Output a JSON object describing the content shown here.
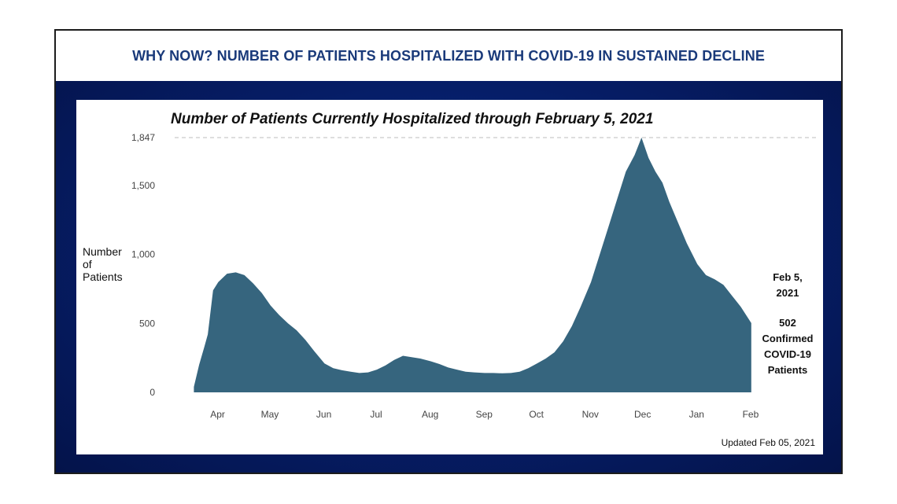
{
  "header": {
    "title": "WHY NOW? NUMBER OF PATIENTS HOSPITALIZED WITH COVID-19 IN SUSTAINED DECLINE"
  },
  "chart_data": {
    "type": "area",
    "title": "Number of Patients Currently Hospitalized through February 5, 2021",
    "ylabel_lines": [
      "Number",
      "of",
      "Patients"
    ],
    "ylim": [
      0,
      1847
    ],
    "y_ticks": [
      0,
      500,
      1000,
      1500,
      1847
    ],
    "y_tick_labels": [
      "0",
      "500",
      "1,000",
      "1,500",
      "1,847"
    ],
    "x_ticks": [
      {
        "label": "Apr",
        "x": "2020-04-01"
      },
      {
        "label": "May",
        "x": "2020-05-01"
      },
      {
        "label": "Jun",
        "x": "2020-06-01"
      },
      {
        "label": "Jul",
        "x": "2020-07-01"
      },
      {
        "label": "Aug",
        "x": "2020-08-01"
      },
      {
        "label": "Sep",
        "x": "2020-09-01"
      },
      {
        "label": "Oct",
        "x": "2020-10-01"
      },
      {
        "label": "Nov",
        "x": "2020-11-01"
      },
      {
        "label": "Dec",
        "x": "2020-12-01"
      },
      {
        "label": "Jan",
        "x": "2021-01-01"
      },
      {
        "label": "Feb",
        "x": "2021-02-01"
      }
    ],
    "reference_line": {
      "y": 1847,
      "style": "dashed"
    },
    "series": [
      {
        "color": "#36657e",
        "points": [
          [
            "2020-03-22",
            40
          ],
          [
            "2020-03-25",
            200
          ],
          [
            "2020-03-28",
            330
          ],
          [
            "2020-03-30",
            420
          ],
          [
            "2020-04-02",
            740
          ],
          [
            "2020-04-05",
            800
          ],
          [
            "2020-04-10",
            860
          ],
          [
            "2020-04-15",
            870
          ],
          [
            "2020-04-20",
            850
          ],
          [
            "2020-04-25",
            790
          ],
          [
            "2020-04-30",
            720
          ],
          [
            "2020-05-05",
            630
          ],
          [
            "2020-05-10",
            560
          ],
          [
            "2020-05-15",
            500
          ],
          [
            "2020-05-20",
            450
          ],
          [
            "2020-05-25",
            380
          ],
          [
            "2020-05-30",
            300
          ],
          [
            "2020-06-05",
            210
          ],
          [
            "2020-06-10",
            175
          ],
          [
            "2020-06-15",
            160
          ],
          [
            "2020-06-20",
            150
          ],
          [
            "2020-06-25",
            140
          ],
          [
            "2020-06-30",
            145
          ],
          [
            "2020-07-05",
            165
          ],
          [
            "2020-07-10",
            195
          ],
          [
            "2020-07-15",
            235
          ],
          [
            "2020-07-20",
            265
          ],
          [
            "2020-07-25",
            255
          ],
          [
            "2020-07-30",
            245
          ],
          [
            "2020-08-05",
            225
          ],
          [
            "2020-08-10",
            205
          ],
          [
            "2020-08-15",
            180
          ],
          [
            "2020-08-20",
            165
          ],
          [
            "2020-08-25",
            150
          ],
          [
            "2020-08-30",
            145
          ],
          [
            "2020-09-05",
            140
          ],
          [
            "2020-09-10",
            140
          ],
          [
            "2020-09-15",
            138
          ],
          [
            "2020-09-20",
            140
          ],
          [
            "2020-09-25",
            150
          ],
          [
            "2020-09-30",
            175
          ],
          [
            "2020-10-05",
            210
          ],
          [
            "2020-10-10",
            245
          ],
          [
            "2020-10-15",
            290
          ],
          [
            "2020-10-20",
            370
          ],
          [
            "2020-10-25",
            480
          ],
          [
            "2020-10-30",
            620
          ],
          [
            "2020-11-05",
            800
          ],
          [
            "2020-11-10",
            1000
          ],
          [
            "2020-11-15",
            1200
          ],
          [
            "2020-11-20",
            1400
          ],
          [
            "2020-11-25",
            1600
          ],
          [
            "2020-11-30",
            1720
          ],
          [
            "2020-12-04",
            1847
          ],
          [
            "2020-12-08",
            1700
          ],
          [
            "2020-12-12",
            1600
          ],
          [
            "2020-12-16",
            1520
          ],
          [
            "2020-12-20",
            1380
          ],
          [
            "2020-12-25",
            1230
          ],
          [
            "2020-12-30",
            1080
          ],
          [
            "2021-01-05",
            930
          ],
          [
            "2021-01-10",
            850
          ],
          [
            "2021-01-15",
            820
          ],
          [
            "2021-01-20",
            780
          ],
          [
            "2021-01-25",
            700
          ],
          [
            "2021-01-30",
            620
          ],
          [
            "2021-02-05",
            502
          ]
        ]
      }
    ]
  },
  "annotation": {
    "date_lines": [
      "Feb 5,",
      "2021"
    ],
    "value_lines": [
      "502",
      "Confirmed",
      "COVID-19",
      "Patients"
    ]
  },
  "updated_text": "Updated Feb 05, 2021"
}
